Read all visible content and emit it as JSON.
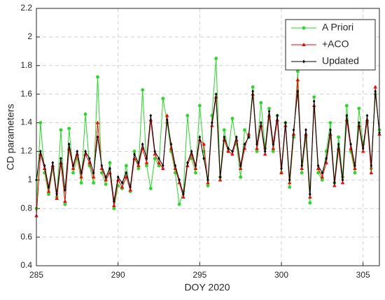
{
  "chart_data": {
    "type": "line",
    "xlabel": "DOY 2020",
    "ylabel": "CD parameters",
    "x": [
      285,
      285.25,
      285.5,
      285.75,
      286,
      286.25,
      286.5,
      286.75,
      287,
      287.25,
      287.5,
      287.75,
      288,
      288.25,
      288.5,
      288.75,
      289,
      289.25,
      289.5,
      289.75,
      290,
      290.25,
      290.5,
      290.75,
      291,
      291.25,
      291.5,
      291.75,
      292,
      292.25,
      292.5,
      292.75,
      293,
      293.25,
      293.5,
      293.75,
      294,
      294.25,
      294.5,
      294.75,
      295,
      295.25,
      295.5,
      295.75,
      296,
      296.25,
      296.5,
      296.75,
      297,
      297.25,
      297.5,
      297.75,
      298,
      298.25,
      298.5,
      298.75,
      299,
      299.25,
      299.5,
      299.75,
      300,
      300.25,
      300.5,
      300.75,
      301,
      301.25,
      301.5,
      301.75,
      302,
      302.25,
      302.5,
      302.75,
      303,
      303.25,
      303.5,
      303.75,
      304,
      304.25,
      304.5,
      304.75,
      305,
      305.25,
      305.5,
      305.75,
      306
    ],
    "series": [
      {
        "name": "A Priori",
        "color": "#22dd22",
        "marker": "circle",
        "values": [
          0.8,
          1.4,
          1.05,
          0.9,
          1.08,
          0.88,
          1.35,
          0.83,
          1.36,
          1.05,
          1.15,
          0.98,
          1.46,
          1.1,
          0.98,
          1.72,
          1.05,
          0.97,
          1.12,
          0.8,
          0.96,
          0.94,
          1.1,
          0.92,
          1.2,
          1.08,
          1.63,
          1.1,
          0.94,
          1.15,
          1.1,
          1.57,
          1.4,
          1.2,
          1.05,
          0.83,
          0.92,
          1.45,
          1.15,
          1.05,
          1.52,
          1.2,
          0.96,
          1.45,
          1.85,
          1.02,
          1.35,
          1.2,
          1.43,
          1.25,
          1.02,
          1.35,
          1.3,
          1.65,
          1.2,
          1.54,
          1.22,
          1.5,
          1.2,
          1.45,
          1.05,
          1.4,
          0.95,
          1.3,
          1.76,
          1.05,
          1.3,
          0.84,
          1.58,
          1.05,
          1.0,
          1.2,
          1.4,
          0.98,
          1.3,
          1.02,
          1.52,
          1.2,
          1.05,
          1.5,
          1.25,
          1.4,
          1.08,
          1.6,
          1.35
        ]
      },
      {
        "name": "+ACO",
        "color": "#ff0000",
        "marker": "triangle",
        "values": [
          0.75,
          1.18,
          1.08,
          0.92,
          1.1,
          0.87,
          1.12,
          0.85,
          1.22,
          1.08,
          1.18,
          1.02,
          1.18,
          1.12,
          1.02,
          1.4,
          1.08,
          1.0,
          1.05,
          0.82,
          1.0,
          0.95,
          1.02,
          0.93,
          1.15,
          1.1,
          1.22,
          1.12,
          1.42,
          1.18,
          1.12,
          1.08,
          1.45,
          1.22,
          1.08,
          0.98,
          0.88,
          1.1,
          1.18,
          1.08,
          1.28,
          1.25,
          0.98,
          1.38,
          1.58,
          1.0,
          1.28,
          1.2,
          1.18,
          1.28,
          1.08,
          1.22,
          1.32,
          1.6,
          1.22,
          1.38,
          1.18,
          1.45,
          1.22,
          1.42,
          1.05,
          1.38,
          0.98,
          1.32,
          1.7,
          1.08,
          1.32,
          0.88,
          1.52,
          1.08,
          1.02,
          1.12,
          1.32,
          0.96,
          1.22,
          0.98,
          1.42,
          1.22,
          1.08,
          1.38,
          1.2,
          1.42,
          1.05,
          1.65,
          1.32
        ]
      },
      {
        "name": "Updated",
        "color": "#000000",
        "marker": "diamond",
        "values": [
          1.0,
          1.2,
          1.1,
          0.95,
          1.12,
          0.9,
          1.15,
          0.93,
          1.25,
          1.1,
          1.2,
          1.05,
          1.2,
          1.15,
          1.05,
          1.3,
          1.1,
          1.02,
          1.08,
          0.85,
          1.02,
          0.98,
          1.05,
          0.95,
          1.18,
          1.12,
          1.25,
          1.15,
          1.45,
          1.2,
          1.15,
          1.1,
          1.42,
          1.25,
          1.1,
          1.0,
          0.9,
          1.12,
          1.2,
          1.1,
          1.3,
          1.15,
          1.0,
          1.4,
          1.6,
          1.02,
          1.3,
          1.22,
          1.2,
          1.3,
          1.1,
          1.25,
          1.3,
          1.62,
          1.25,
          1.4,
          1.2,
          1.48,
          1.25,
          1.45,
          1.08,
          1.4,
          1.0,
          1.35,
          1.62,
          1.1,
          1.35,
          0.9,
          1.55,
          1.1,
          1.05,
          1.15,
          1.35,
          0.98,
          1.25,
          1.0,
          1.45,
          1.25,
          1.1,
          1.4,
          1.22,
          1.45,
          1.1,
          1.62,
          1.33
        ]
      }
    ],
    "xlim": [
      285,
      306
    ],
    "xticks": [
      285,
      290,
      295,
      300,
      305
    ],
    "ylim": [
      0.4,
      2.2
    ],
    "yticks": [
      0.4,
      0.6,
      0.8,
      1,
      1.2,
      1.4,
      1.6,
      1.8,
      2,
      2.2
    ],
    "grid": true,
    "legend": "upper right"
  }
}
